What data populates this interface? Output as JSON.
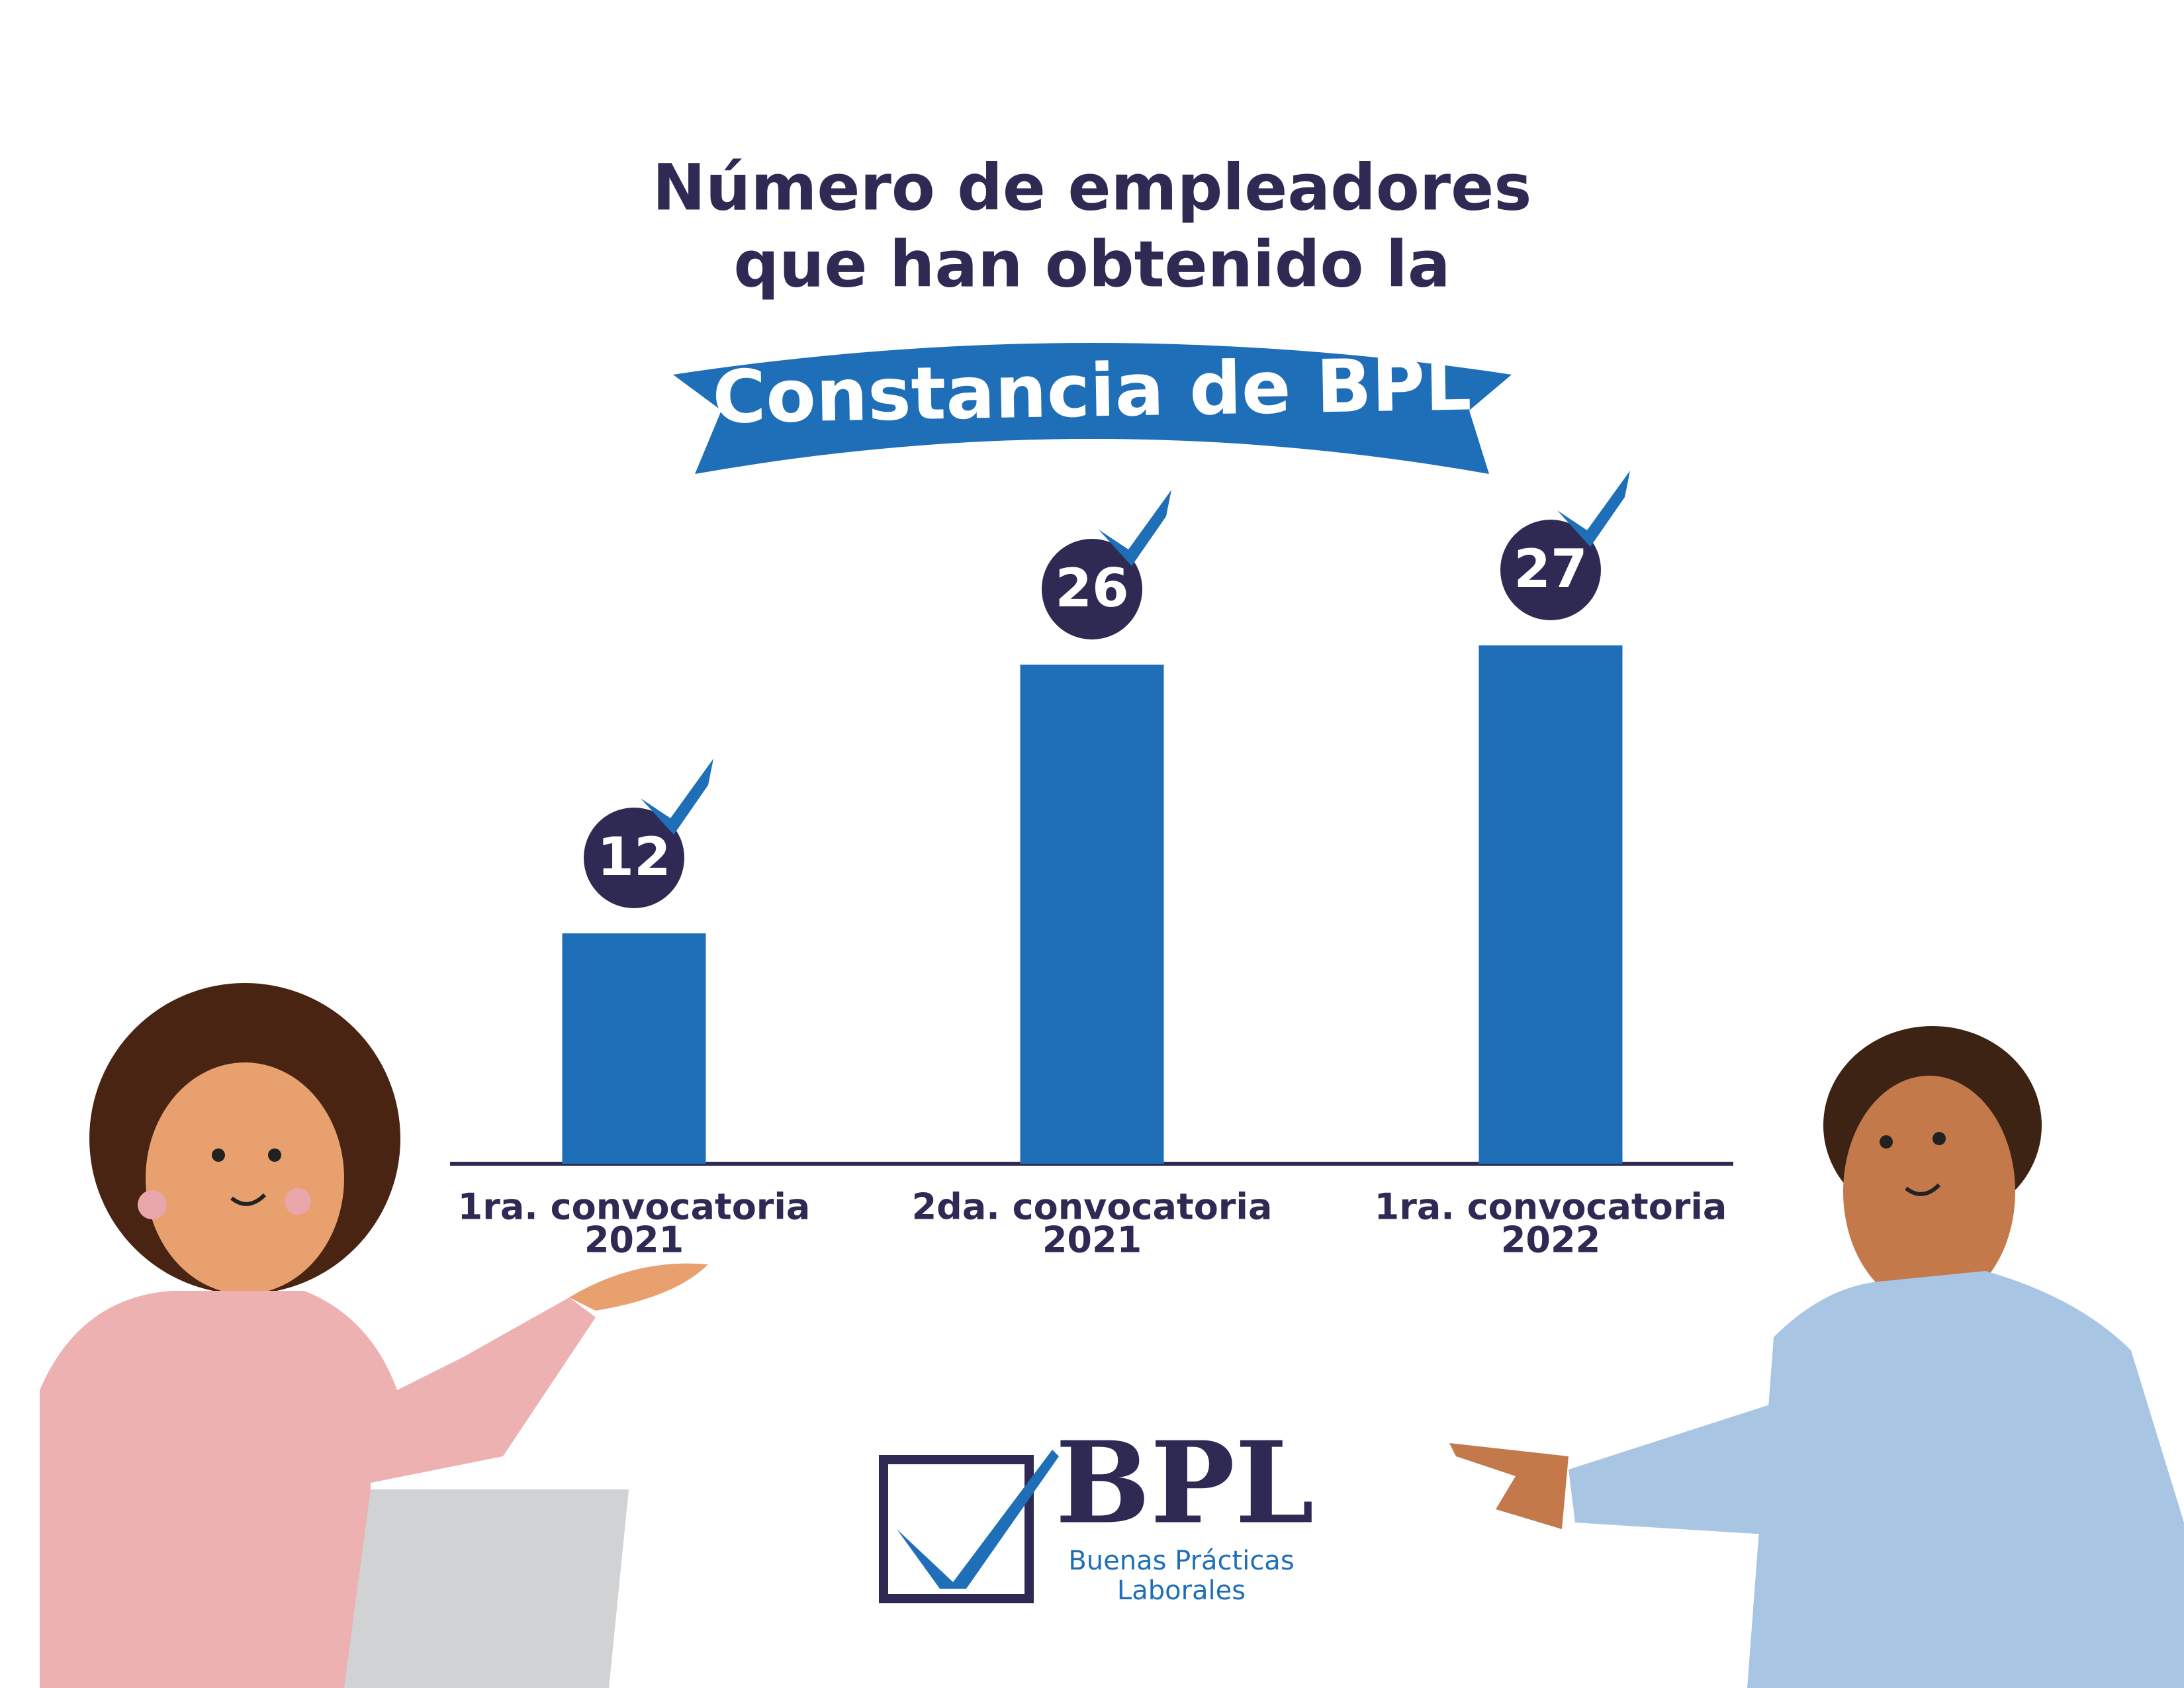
{
  "chart_data": {
    "type": "bar",
    "title": [
      "Número de empleadores",
      "que han obtenido la"
    ],
    "banner": "Constancia de BPL",
    "categories": [
      [
        "1ra. convocatoria",
        "2021"
      ],
      [
        "2da. convocatoria",
        "2021"
      ],
      [
        "1ra. convocatoria",
        "2022"
      ]
    ],
    "values": [
      12,
      26,
      27
    ],
    "color": "#1f6fb8",
    "label_color": "#2e2a54"
  },
  "logo": {
    "title": "BPL",
    "subtitle": [
      "Buenas Prácticas",
      "Laborales"
    ]
  }
}
